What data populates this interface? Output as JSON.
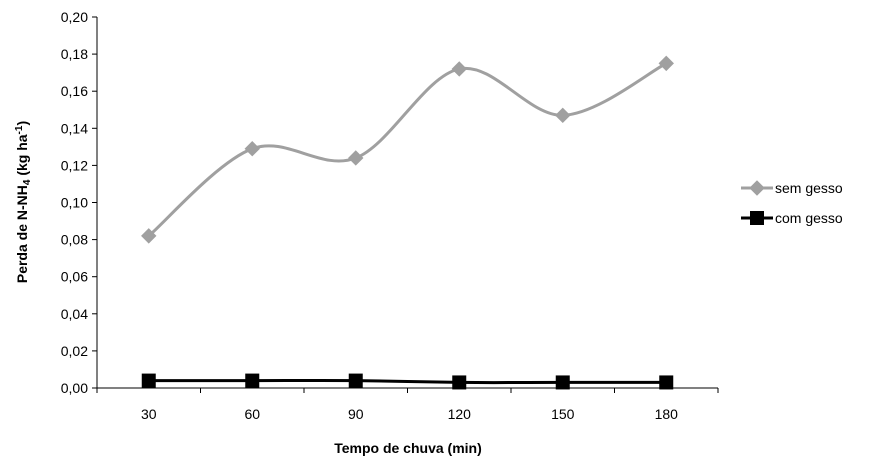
{
  "chart_data": {
    "type": "line",
    "title": "",
    "xlabel": "Tempo de chuva (min)",
    "ylabel": "Perda de N-NH",
    "ylabel_sub": "4",
    "ylabel_unit": " (kg ha",
    "ylabel_sup": "-1",
    "ylabel_close": ")",
    "categories": [
      "30",
      "60",
      "90",
      "120",
      "150",
      "180"
    ],
    "ylim": [
      0,
      0.2
    ],
    "yticks": [
      "0,00",
      "0,02",
      "0,04",
      "0,06",
      "0,08",
      "0,10",
      "0,12",
      "0,14",
      "0,16",
      "0,18",
      "0,20"
    ],
    "grid": false,
    "legend_position": "right",
    "series": [
      {
        "name": "sem gesso",
        "values": [
          0.082,
          0.129,
          0.124,
          0.172,
          0.147,
          0.175
        ],
        "color": "#a0a0a0",
        "marker": "diamond",
        "smooth": true
      },
      {
        "name": "com gesso",
        "values": [
          0.004,
          0.004,
          0.004,
          0.003,
          0.003,
          0.003
        ],
        "color": "#000000",
        "marker": "square",
        "smooth": true
      }
    ]
  }
}
